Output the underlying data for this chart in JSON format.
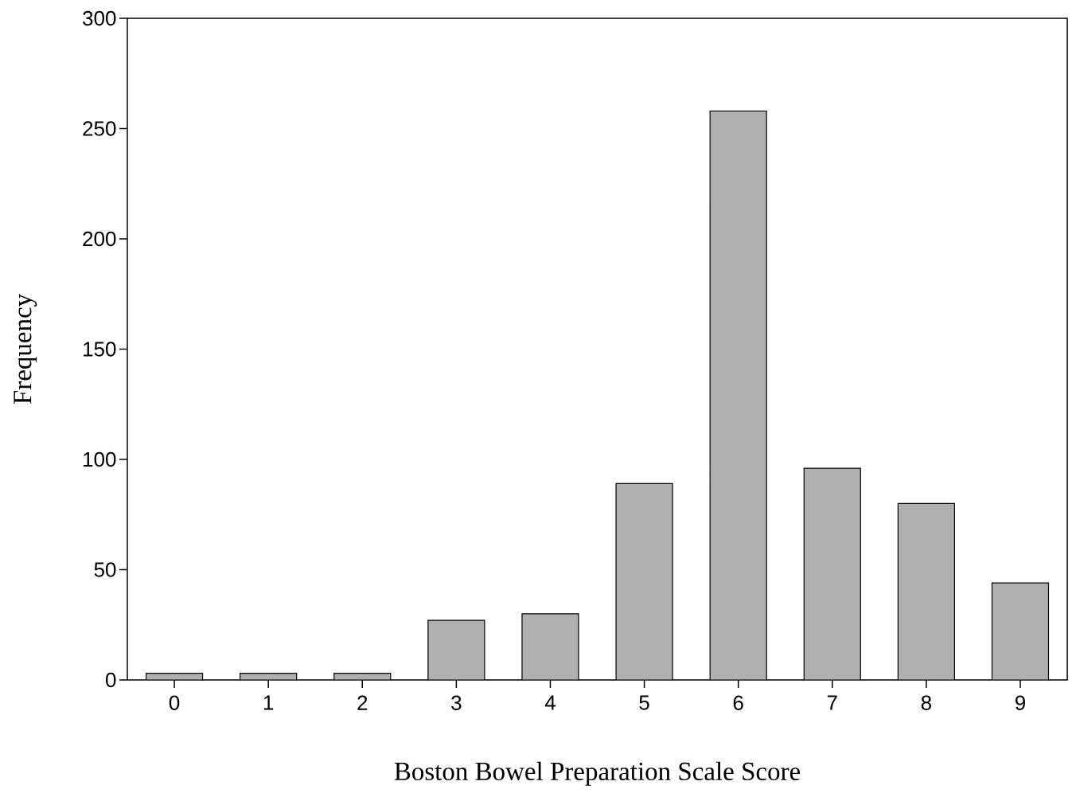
{
  "chart_data": {
    "type": "bar",
    "xlabel": "Boston Bowel Preparation Scale Score",
    "ylabel": "Frequency",
    "categories": [
      "0",
      "1",
      "2",
      "3",
      "4",
      "5",
      "6",
      "7",
      "8",
      "9"
    ],
    "values": [
      3,
      3,
      3,
      27,
      30,
      89,
      258,
      96,
      80,
      44
    ],
    "color": "#b0b0b0",
    "ylim": [
      0,
      300
    ],
    "yticks": [
      0,
      50,
      100,
      150,
      200,
      250,
      300
    ],
    "grid": false
  }
}
